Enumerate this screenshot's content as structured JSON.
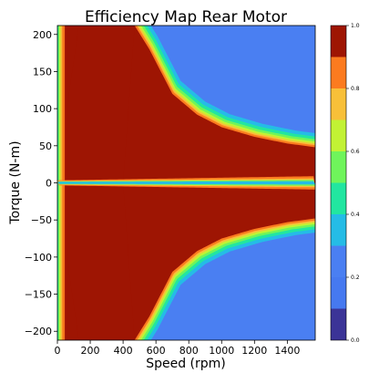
{
  "chart_data": {
    "type": "heatmap",
    "subtype": "filled-contour",
    "title": "Efficiency Map Rear Motor",
    "xlabel": "Speed (rpm)",
    "ylabel": "Torque (N-m)",
    "xlim": [
      0,
      1570
    ],
    "ylim": [
      -212,
      212
    ],
    "xticks": [
      0,
      200,
      400,
      600,
      800,
      1000,
      1200,
      1400
    ],
    "yticks": [
      200,
      150,
      100,
      50,
      0,
      -50,
      -100,
      -150,
      -200
    ],
    "grid": false,
    "colorbar": {
      "min": 0.0,
      "max": 1.0,
      "ticks": [
        "1.0",
        "0.8",
        "0.6",
        "0.4",
        "0.2",
        "0.0"
      ],
      "levels": [
        {
          "from": 0.0,
          "to": 0.1,
          "color": "#3b3497"
        },
        {
          "from": 0.1,
          "to": 0.2,
          "color": "#4679f0"
        },
        {
          "from": 0.2,
          "to": 0.3,
          "color": "#4a7ff2"
        },
        {
          "from": 0.3,
          "to": 0.4,
          "color": "#25bce6"
        },
        {
          "from": 0.4,
          "to": 0.5,
          "color": "#22e6a0"
        },
        {
          "from": 0.5,
          "to": 0.6,
          "color": "#6ff55b"
        },
        {
          "from": 0.6,
          "to": 0.7,
          "color": "#c2f234"
        },
        {
          "from": 0.7,
          "to": 0.8,
          "color": "#f8c039"
        },
        {
          "from": 0.8,
          "to": 0.9,
          "color": "#fc7b1f"
        },
        {
          "from": 0.9,
          "to": 1.0,
          "color": "#e84a0f"
        },
        {
          "from": 1.0,
          "to": 1.0,
          "color": "#9e1503"
        }
      ]
    },
    "regions": [
      {
        "name": "low-efficiency field",
        "efficiency": 0.2,
        "color": "#4a7ff2"
      },
      {
        "name": "max torque boundary (motoring)",
        "torque_limit_at_speed": [
          [
            0,
            212
          ],
          [
            470,
            212
          ],
          [
            560,
            180
          ],
          [
            700,
            120
          ],
          [
            850,
            92
          ],
          [
            1000,
            75
          ],
          [
            1200,
            62
          ],
          [
            1400,
            53
          ],
          [
            1570,
            48
          ]
        ]
      },
      {
        "name": "max torque boundary (regenerating)",
        "torque_limit_at_speed": [
          [
            0,
            -212
          ],
          [
            470,
            -212
          ],
          [
            560,
            -180
          ],
          [
            700,
            -120
          ],
          [
            850,
            -92
          ],
          [
            1000,
            -75
          ],
          [
            1200,
            -62
          ],
          [
            1400,
            -53
          ],
          [
            1570,
            -48
          ]
        ]
      },
      {
        "name": "high-efficiency core",
        "efficiency": 1.0,
        "color": "#9e1503"
      }
    ]
  }
}
